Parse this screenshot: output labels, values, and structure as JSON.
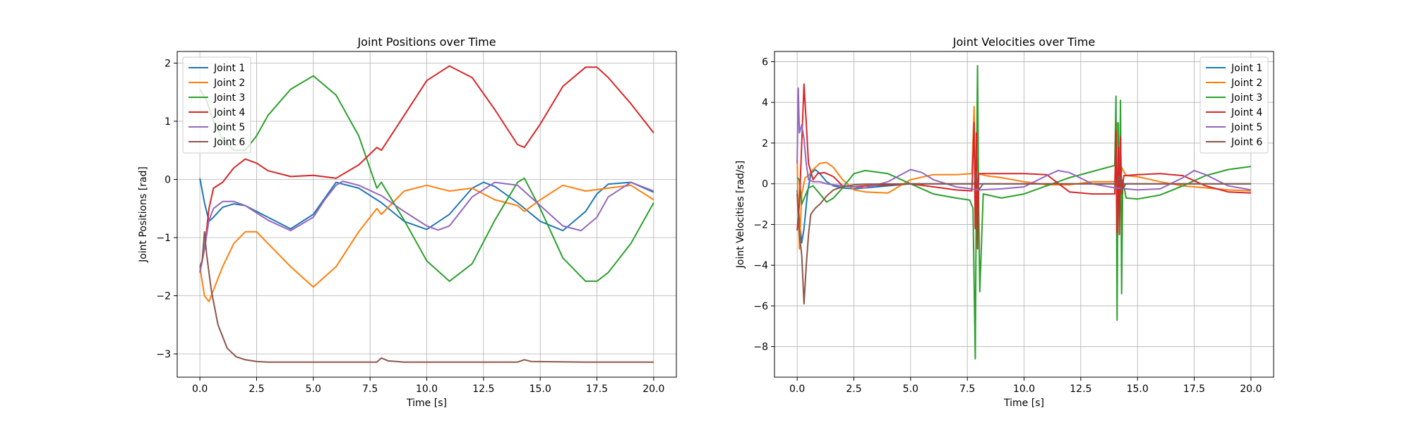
{
  "chart_data": [
    {
      "type": "line",
      "title": "Joint Positions over Time",
      "xlabel": "Time [s]",
      "ylabel": "Joint Positions [rad]",
      "xlim": [
        -1.0,
        21.0
      ],
      "ylim": [
        -3.4,
        2.2
      ],
      "xticks": [
        "0.0",
        "2.5",
        "5.0",
        "7.5",
        "10.0",
        "12.5",
        "15.0",
        "17.5",
        "20.0"
      ],
      "xtick_values": [
        0,
        2.5,
        5,
        7.5,
        10,
        12.5,
        15,
        17.5,
        20
      ],
      "yticks": [
        "−3",
        "−2",
        "−1",
        "0",
        "1",
        "2"
      ],
      "ytick_values": [
        -3,
        -2,
        -1,
        0,
        1,
        2
      ],
      "grid": true,
      "legend": "top-left",
      "series": [
        {
          "name": "Joint 1",
          "color": "#1f77b4",
          "x": [
            0,
            0.2,
            0.4,
            0.6,
            1.0,
            1.5,
            2.0,
            3.0,
            4.0,
            5.0,
            6.0,
            7.0,
            8.0,
            9.0,
            10.0,
            11.0,
            12.0,
            12.5,
            13.0,
            14.0,
            15.0,
            16.0,
            17.0,
            17.5,
            18.0,
            19.0,
            20.0
          ],
          "y": [
            0.02,
            -0.4,
            -0.72,
            -0.65,
            -0.48,
            -0.42,
            -0.45,
            -0.65,
            -0.85,
            -0.6,
            -0.05,
            -0.15,
            -0.4,
            -0.72,
            -0.86,
            -0.6,
            -0.15,
            -0.05,
            -0.12,
            -0.4,
            -0.72,
            -0.88,
            -0.55,
            -0.25,
            -0.08,
            -0.05,
            -0.22
          ]
        },
        {
          "name": "Joint 2",
          "color": "#ff7f0e",
          "x": [
            0,
            0.2,
            0.4,
            0.6,
            1.0,
            1.5,
            2.0,
            2.5,
            3.0,
            4.0,
            5.0,
            6.0,
            7.0,
            7.8,
            8.0,
            9.0,
            10.0,
            11.0,
            12.0,
            13.0,
            14.0,
            14.3,
            15.0,
            16.0,
            17.0,
            18.0,
            19.0,
            20.0
          ],
          "y": [
            -1.5,
            -2.0,
            -2.1,
            -1.9,
            -1.5,
            -1.1,
            -0.9,
            -0.9,
            -1.1,
            -1.5,
            -1.85,
            -1.5,
            -0.9,
            -0.5,
            -0.6,
            -0.2,
            -0.1,
            -0.2,
            -0.15,
            -0.35,
            -0.45,
            -0.55,
            -0.35,
            -0.1,
            -0.2,
            -0.15,
            -0.1,
            -0.35
          ]
        },
        {
          "name": "Joint 3",
          "color": "#2ca02c",
          "x": [
            0,
            0.3,
            0.6,
            1.0,
            1.5,
            2.0,
            2.5,
            3.0,
            4.0,
            5.0,
            6.0,
            7.0,
            7.8,
            8.0,
            9.0,
            10.0,
            11.0,
            12.0,
            13.0,
            14.0,
            14.3,
            15.0,
            16.0,
            17.0,
            17.5,
            18.0,
            19.0,
            20.0
          ],
          "y": [
            1.55,
            1.35,
            1.0,
            0.7,
            0.5,
            0.5,
            0.75,
            1.1,
            1.55,
            1.78,
            1.45,
            0.75,
            -0.15,
            -0.05,
            -0.7,
            -1.4,
            -1.75,
            -1.45,
            -0.7,
            -0.05,
            0.02,
            -0.5,
            -1.35,
            -1.75,
            -1.75,
            -1.6,
            -1.1,
            -0.4
          ]
        },
        {
          "name": "Joint 4",
          "color": "#d62728",
          "x": [
            0,
            0.2,
            0.4,
            0.6,
            1.0,
            1.5,
            2.0,
            2.5,
            3.0,
            4.0,
            5.0,
            6.0,
            7.0,
            7.8,
            8.0,
            9.0,
            10.0,
            11.0,
            12.0,
            13.0,
            14.0,
            14.3,
            15.0,
            16.0,
            17.0,
            17.5,
            18.0,
            19.0,
            20.0
          ],
          "y": [
            -1.6,
            -1.2,
            -0.5,
            -0.15,
            -0.05,
            0.2,
            0.35,
            0.28,
            0.15,
            0.05,
            0.07,
            0.02,
            0.25,
            0.55,
            0.5,
            1.1,
            1.7,
            1.95,
            1.75,
            1.2,
            0.6,
            0.55,
            0.95,
            1.6,
            1.93,
            1.93,
            1.75,
            1.3,
            0.8
          ]
        },
        {
          "name": "Joint 5",
          "color": "#9467bd",
          "x": [
            0,
            0.2,
            0.4,
            0.6,
            1.0,
            1.5,
            2.0,
            3.0,
            4.0,
            5.0,
            5.5,
            6.0,
            6.3,
            7.0,
            8.0,
            9.0,
            10.0,
            10.5,
            11.0,
            12.0,
            13.0,
            14.0,
            15.0,
            16.0,
            16.8,
            17.5,
            18.0,
            19.0,
            20.0
          ],
          "y": [
            -1.6,
            -1.2,
            -0.7,
            -0.5,
            -0.38,
            -0.38,
            -0.45,
            -0.7,
            -0.88,
            -0.65,
            -0.35,
            -0.1,
            -0.03,
            -0.1,
            -0.28,
            -0.55,
            -0.8,
            -0.87,
            -0.8,
            -0.3,
            -0.05,
            -0.1,
            -0.45,
            -0.8,
            -0.88,
            -0.65,
            -0.3,
            -0.05,
            -0.2
          ]
        },
        {
          "name": "Joint 6",
          "color": "#8c564b",
          "x": [
            0,
            0.1,
            0.2,
            0.3,
            0.5,
            0.8,
            1.2,
            1.6,
            2.0,
            2.5,
            3.0,
            5.0,
            7.0,
            7.8,
            8.0,
            8.3,
            9.0,
            12.0,
            14.0,
            14.3,
            14.6,
            17.0,
            20.0
          ],
          "y": [
            -1.5,
            -1.4,
            -0.9,
            -1.3,
            -1.9,
            -2.5,
            -2.9,
            -3.05,
            -3.1,
            -3.13,
            -3.14,
            -3.14,
            -3.14,
            -3.14,
            -3.07,
            -3.12,
            -3.14,
            -3.14,
            -3.14,
            -3.1,
            -3.13,
            -3.14,
            -3.14
          ]
        }
      ]
    },
    {
      "type": "line",
      "title": "Joint Velocities over Time",
      "xlabel": "Time [s]",
      "ylabel": "Joint Velocities [rad/s]",
      "xlim": [
        -1.0,
        21.0
      ],
      "ylim": [
        -9.5,
        6.5
      ],
      "xticks": [
        "0.0",
        "2.5",
        "5.0",
        "7.5",
        "10.0",
        "12.5",
        "15.0",
        "17.5",
        "20.0"
      ],
      "xtick_values": [
        0,
        2.5,
        5,
        7.5,
        10,
        12.5,
        15,
        17.5,
        20
      ],
      "yticks": [
        "−8",
        "−6",
        "−4",
        "−2",
        "0",
        "2",
        "4",
        "6"
      ],
      "ytick_values": [
        -8,
        -6,
        -4,
        -2,
        0,
        2,
        4,
        6
      ],
      "grid": true,
      "legend": "top-right",
      "series": [
        {
          "name": "Joint 1",
          "color": "#1f77b4",
          "x": [
            0,
            0.1,
            0.2,
            0.3,
            0.45,
            0.6,
            0.8,
            1.0,
            1.3,
            1.6,
            2.0,
            2.5,
            3.0,
            5.0,
            7.5,
            10,
            12.5,
            15,
            17.5,
            20
          ],
          "y": [
            -0.3,
            -1.8,
            -2.9,
            -2.2,
            -0.5,
            0.5,
            0.7,
            0.5,
            0.1,
            -0.1,
            -0.2,
            -0.25,
            -0.2,
            0,
            0,
            0,
            0,
            0,
            0,
            0
          ]
        },
        {
          "name": "Joint 2",
          "color": "#ff7f0e",
          "x": [
            0,
            0.1,
            0.2,
            0.35,
            0.5,
            0.7,
            1.0,
            1.3,
            1.6,
            2.0,
            2.5,
            3.0,
            4.0,
            5.0,
            6.0,
            7.0,
            7.7,
            7.8,
            7.85,
            7.9,
            8.0,
            8.3,
            9.0,
            10.0,
            11.0,
            12.0,
            13.0,
            14.0,
            14.1,
            14.2,
            14.3,
            14.5,
            15.0,
            16.0,
            17.0,
            18.0,
            19.0,
            20.0
          ],
          "y": [
            1.2,
            -3.2,
            -0.5,
            0.3,
            0.4,
            0.7,
            1.0,
            1.05,
            0.8,
            0.2,
            -0.3,
            -0.4,
            -0.45,
            0.2,
            0.45,
            0.45,
            0.5,
            3.8,
            -1.5,
            1.5,
            0.5,
            0.4,
            0.3,
            0.1,
            -0.05,
            -0.05,
            0.1,
            0.1,
            3.0,
            -1.0,
            0.8,
            0.4,
            0.35,
            0.1,
            -0.1,
            -0.2,
            -0.3,
            -0.35
          ]
        },
        {
          "name": "Joint 3",
          "color": "#2ca02c",
          "x": [
            0,
            0.1,
            0.2,
            0.35,
            0.5,
            0.7,
            1.0,
            1.3,
            1.6,
            2.0,
            2.5,
            3.0,
            4.0,
            5.0,
            6.0,
            7.0,
            7.6,
            7.75,
            7.85,
            7.9,
            7.95,
            8.0,
            8.05,
            8.2,
            9.0,
            10.0,
            11.0,
            12.0,
            13.0,
            14.0,
            14.05,
            14.1,
            14.15,
            14.2,
            14.25,
            14.3,
            14.35,
            14.5,
            15.0,
            16.0,
            17.0,
            18.0,
            19.0,
            20.0
          ],
          "y": [
            0.3,
            0.2,
            -1.0,
            -0.6,
            -0.2,
            -0.1,
            -0.5,
            -0.9,
            -0.7,
            -0.2,
            0.5,
            0.65,
            0.5,
            0.0,
            -0.5,
            -0.7,
            -0.8,
            -1.2,
            -8.6,
            0.0,
            5.8,
            -1.0,
            -5.3,
            -0.5,
            -0.7,
            -0.5,
            -0.1,
            0.3,
            0.6,
            0.9,
            4.3,
            -6.7,
            3.0,
            -2.0,
            4.1,
            -5.4,
            0.2,
            -0.7,
            -0.75,
            -0.55,
            -0.1,
            0.4,
            0.7,
            0.85
          ]
        },
        {
          "name": "Joint 4",
          "color": "#d62728",
          "x": [
            0,
            0.1,
            0.2,
            0.3,
            0.4,
            0.5,
            0.7,
            0.9,
            1.2,
            1.6,
            2.0,
            2.5,
            3.0,
            4.0,
            5.0,
            6.0,
            7.0,
            7.7,
            7.8,
            7.85,
            7.9,
            7.95,
            8.0,
            8.2,
            9.0,
            10.0,
            11.0,
            12.0,
            13.0,
            14.0,
            14.05,
            14.1,
            14.15,
            14.2,
            14.25,
            14.3,
            14.4,
            15.0,
            16.0,
            17.0,
            18.0,
            19.0,
            20.0
          ],
          "y": [
            -2.3,
            -1.0,
            2.0,
            4.9,
            3.0,
            1.0,
            0.2,
            0.5,
            0.55,
            0.35,
            -0.1,
            -0.15,
            -0.1,
            -0.05,
            0.0,
            -0.15,
            -0.3,
            -0.35,
            3.0,
            -2.2,
            2.5,
            -3.2,
            0.5,
            0.5,
            0.5,
            0.5,
            0.45,
            -0.4,
            -0.5,
            -0.5,
            2.6,
            -2.4,
            1.8,
            -2.5,
            2.3,
            -0.5,
            0.4,
            0.45,
            0.5,
            0.4,
            -0.1,
            -0.4,
            -0.45
          ]
        },
        {
          "name": "Joint 5",
          "color": "#9467bd",
          "x": [
            0,
            0.05,
            0.1,
            0.2,
            0.3,
            0.4,
            0.5,
            0.7,
            1.0,
            1.3,
            1.6,
            2.0,
            3.0,
            4.0,
            5.0,
            5.5,
            6.0,
            7.0,
            8.0,
            9.0,
            10.0,
            11.0,
            11.5,
            12.0,
            13.0,
            14.0,
            15.0,
            16.0,
            17.0,
            17.5,
            18.0,
            19.0,
            20.0
          ],
          "y": [
            1.0,
            4.7,
            2.5,
            2.9,
            2.2,
            1.0,
            0.2,
            0.1,
            0.1,
            0.0,
            -0.05,
            -0.1,
            -0.2,
            0.1,
            0.7,
            0.55,
            0.2,
            -0.15,
            -0.3,
            -0.25,
            -0.15,
            0.4,
            0.65,
            0.55,
            0.0,
            -0.2,
            -0.3,
            -0.25,
            0.3,
            0.65,
            0.45,
            -0.1,
            -0.3
          ]
        },
        {
          "name": "Joint 6",
          "color": "#8c564b",
          "x": [
            0,
            0.1,
            0.2,
            0.3,
            0.4,
            0.5,
            0.6,
            0.8,
            1.0,
            1.3,
            1.6,
            2.0,
            2.5,
            3.0,
            5.0,
            7.8,
            7.9,
            8.0,
            8.2,
            10.0,
            14.1,
            14.2,
            14.3,
            14.5,
            17.0,
            20.0
          ],
          "y": [
            -0.5,
            -2.5,
            -3.5,
            -5.9,
            -4.0,
            -2.5,
            -1.5,
            -1.2,
            -1.0,
            -0.6,
            -0.3,
            -0.15,
            -0.05,
            -0.02,
            0.0,
            0.0,
            0.5,
            -0.3,
            0.0,
            0.0,
            0.0,
            0.4,
            -0.3,
            0.0,
            0.0,
            0.0
          ]
        }
      ]
    }
  ]
}
